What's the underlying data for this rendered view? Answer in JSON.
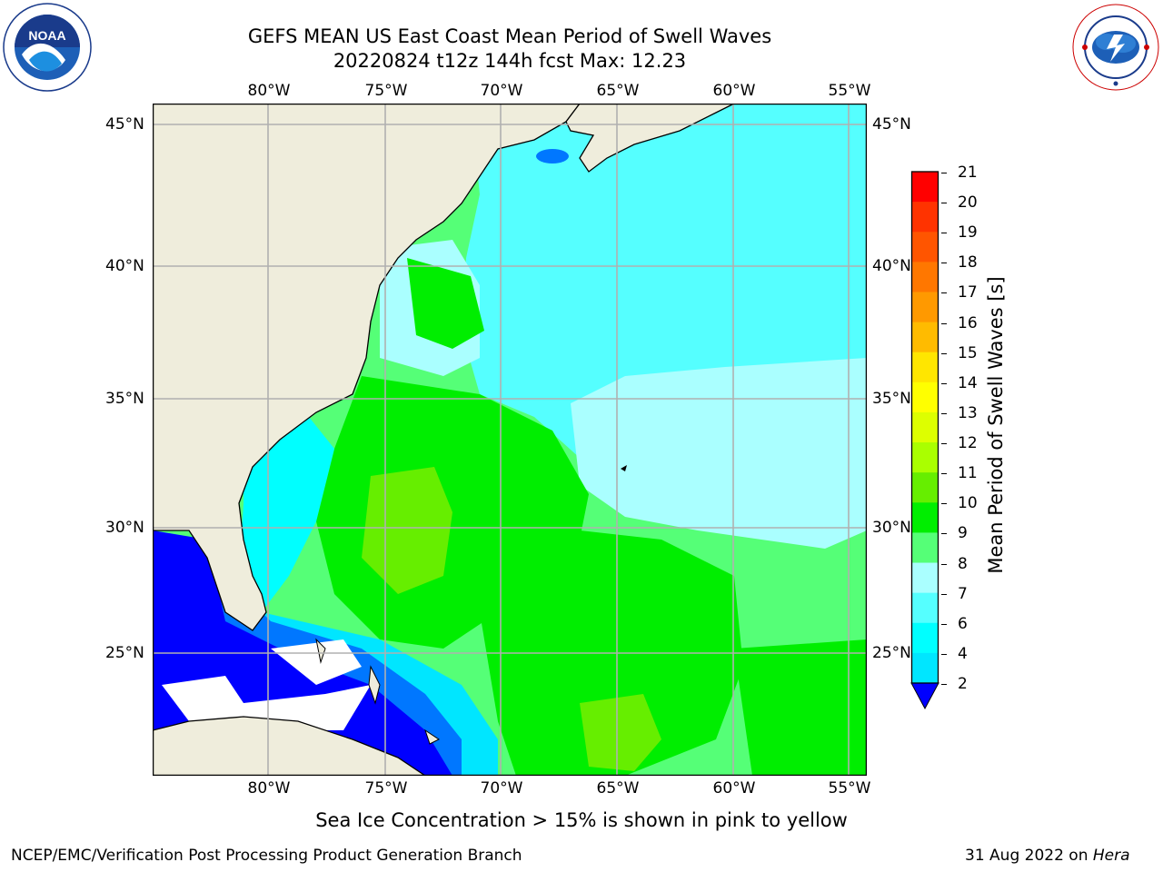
{
  "header": {
    "title_line1": "GEFS MEAN US East Coast Mean Period of Swell Waves",
    "title_line2": "20220824 t12z 144h fcst   Max: 12.23"
  },
  "logos": {
    "left": {
      "text": "NOAA",
      "ring_text": "NATIONAL OCEANIC AND ATMOSPHERIC ADMINISTRATION",
      "bottom_text": "U.S. DEPARTMENT OF COMMERCE"
    },
    "right": {
      "ring_text": "NATIONAL WEATHER SERVICE"
    }
  },
  "map": {
    "lon_labels": [
      "80°W",
      "75°W",
      "70°W",
      "65°W",
      "60°W",
      "55°W"
    ],
    "lat_labels": [
      "45°N",
      "40°N",
      "35°N",
      "30°N",
      "25°N"
    ],
    "colors": {
      "land": "#efeddc",
      "grid": "#b0b0b0",
      "coast": "#000000"
    }
  },
  "colorbar": {
    "label": "Mean Period of Swell Waves [s]",
    "ticks": [
      "21",
      "20",
      "19",
      "18",
      "17",
      "16",
      "15",
      "14",
      "13",
      "12",
      "11",
      "10",
      "9",
      "8",
      "7",
      "6",
      "4",
      "2"
    ],
    "colors": [
      "#ff0000",
      "#ff3300",
      "#ff5500",
      "#ff7700",
      "#ff9900",
      "#ffbb00",
      "#ffe600",
      "#ffff00",
      "#ddff00",
      "#aaff00",
      "#66ee00",
      "#00ee00",
      "#55ff77",
      "#aaffff",
      "#55ffff",
      "#00ffff",
      "#00e6ff",
      "#0077ff",
      "#0000ff"
    ]
  },
  "caption": "Sea Ice Concentration > 15% is shown in pink to yellow",
  "footer": {
    "left": "NCEP/EMC/Verification Post Processing Product Generation Branch",
    "right_prefix": "31 Aug 2022 on ",
    "right_italic": "Hera"
  }
}
